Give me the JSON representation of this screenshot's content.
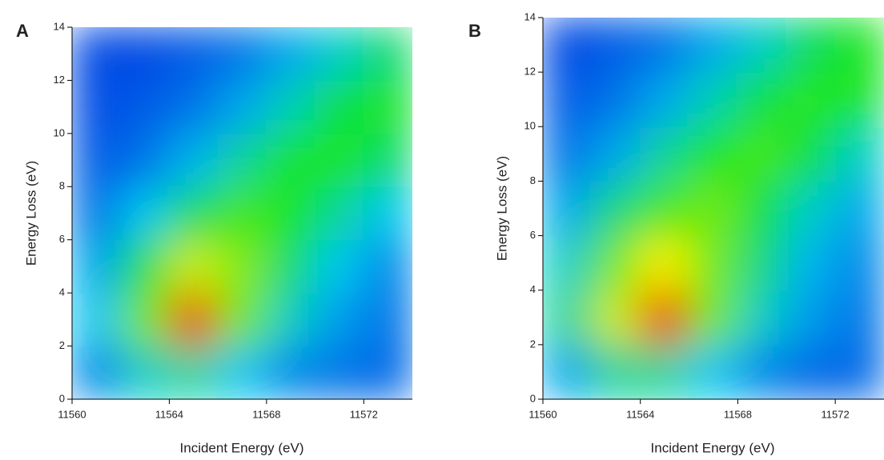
{
  "chart_data": [
    {
      "type": "heatmap",
      "label": "A",
      "x_label": "Incident Energy (eV)",
      "y_label": "Energy Loss (eV)",
      "xlim": [
        11560,
        11574
      ],
      "ylim": [
        0,
        14
      ],
      "xticks": [
        11560,
        11564,
        11568,
        11572
      ],
      "yticks": [
        0,
        2,
        4,
        6,
        8,
        10,
        12,
        14
      ],
      "x": [
        11561,
        11563,
        11565,
        11567,
        11569,
        11571,
        11573
      ],
      "y": [
        1,
        3,
        5,
        7,
        9,
        11,
        13
      ],
      "z": [
        [
          0.15,
          0.3,
          0.35,
          0.25,
          0.15,
          0.12,
          0.1
        ],
        [
          0.25,
          0.6,
          0.95,
          0.6,
          0.3,
          0.18,
          0.12
        ],
        [
          0.2,
          0.45,
          0.7,
          0.62,
          0.4,
          0.25,
          0.15
        ],
        [
          0.12,
          0.25,
          0.42,
          0.55,
          0.5,
          0.35,
          0.25
        ],
        [
          0.08,
          0.12,
          0.22,
          0.35,
          0.48,
          0.5,
          0.4
        ],
        [
          0.06,
          0.08,
          0.12,
          0.2,
          0.32,
          0.45,
          0.5
        ],
        [
          0.05,
          0.05,
          0.08,
          0.12,
          0.2,
          0.3,
          0.4
        ]
      ]
    },
    {
      "type": "heatmap",
      "label": "B",
      "x_label": "Incident Energy (eV)",
      "y_label": "Energy Loss (eV)",
      "xlim": [
        11560,
        11574
      ],
      "ylim": [
        0,
        14
      ],
      "xticks": [
        11560,
        11564,
        11568,
        11572
      ],
      "yticks": [
        0,
        2,
        4,
        6,
        8,
        10,
        12,
        14
      ],
      "x": [
        11561,
        11563,
        11565,
        11567,
        11569,
        11571,
        11573
      ],
      "y": [
        1,
        3,
        5,
        7,
        9,
        11,
        13
      ],
      "z": [
        [
          0.2,
          0.35,
          0.35,
          0.25,
          0.15,
          0.1,
          0.1
        ],
        [
          0.35,
          0.7,
          0.95,
          0.6,
          0.3,
          0.18,
          0.12
        ],
        [
          0.3,
          0.6,
          0.75,
          0.6,
          0.38,
          0.22,
          0.15
        ],
        [
          0.2,
          0.38,
          0.55,
          0.6,
          0.45,
          0.3,
          0.2
        ],
        [
          0.12,
          0.2,
          0.35,
          0.5,
          0.55,
          0.45,
          0.3
        ],
        [
          0.08,
          0.12,
          0.2,
          0.32,
          0.45,
          0.52,
          0.48
        ],
        [
          0.05,
          0.08,
          0.12,
          0.2,
          0.3,
          0.42,
          0.5
        ]
      ]
    }
  ]
}
